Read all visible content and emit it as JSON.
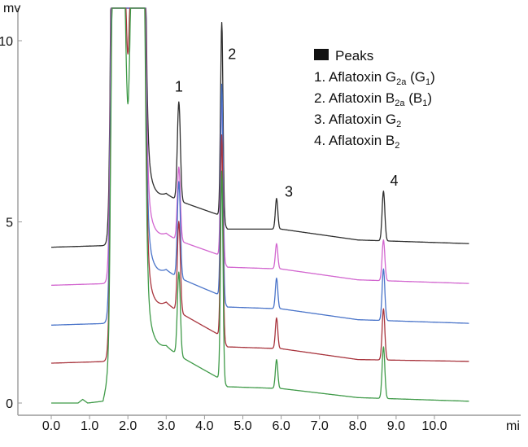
{
  "chart_data": {
    "type": "line",
    "y_unit": "mv",
    "x_unit": "mi",
    "xlim": [
      0,
      10.9
    ],
    "ylim": [
      -0.3,
      10.3
    ],
    "x_ticks": [
      "0.0",
      "1.0",
      "2.0",
      "3.0",
      "4.0",
      "5.0",
      "6.0",
      "7.0",
      "8.0",
      "9.0",
      "10.0"
    ],
    "y_ticks": [
      "0",
      "5",
      "10"
    ],
    "grid": false,
    "legend": {
      "placement": "top-right",
      "title": "Peaks",
      "items": [
        {
          "num": "1.",
          "base": "Aflatoxin G",
          "sub": "2a",
          "rest": " (G",
          "sub2": "1",
          "end": ")"
        },
        {
          "num": "2.",
          "base": "Aflatoxin B",
          "sub": "2a",
          "rest": " (B",
          "sub2": "1",
          "end": ")"
        },
        {
          "num": "3.",
          "base": "Aflatoxin G",
          "sub": "2",
          "rest": "",
          "sub2": "",
          "end": ""
        },
        {
          "num": "4.",
          "base": "Aflatoxin B",
          "sub": "2",
          "rest": "",
          "sub2": "",
          "end": ""
        }
      ]
    },
    "peak_labels": [
      {
        "label": "1",
        "x": 3.33,
        "y": 8.6
      },
      {
        "label": "2",
        "x": 4.72,
        "y": 9.5
      },
      {
        "label": "3",
        "x": 6.2,
        "y": 5.7
      },
      {
        "label": "4",
        "x": 8.95,
        "y": 6.0
      }
    ],
    "series": [
      {
        "color": "#2e2e2e",
        "baseline": [
          [
            0.0,
            4.3
          ],
          [
            1.55,
            4.35
          ],
          [
            3.0,
            5.7
          ],
          [
            4.35,
            5.2
          ],
          [
            4.6,
            4.8
          ],
          [
            6.0,
            4.8
          ],
          [
            8.0,
            4.5
          ],
          [
            10.9,
            4.4
          ]
        ],
        "peaks": [
          {
            "x": 3.33,
            "y": 8.3
          },
          {
            "x": 4.45,
            "y": 10.5
          },
          {
            "x": 5.88,
            "y": 5.65
          },
          {
            "x": 8.67,
            "y": 5.85
          }
        ]
      },
      {
        "color": "#d266cf",
        "baseline": [
          [
            0.0,
            3.25
          ],
          [
            1.55,
            3.3
          ],
          [
            3.0,
            4.6
          ],
          [
            4.35,
            4.1
          ],
          [
            4.6,
            3.75
          ],
          [
            6.0,
            3.7
          ],
          [
            8.0,
            3.4
          ],
          [
            10.9,
            3.3
          ]
        ],
        "peaks": [
          {
            "x": 3.33,
            "y": 6.5
          },
          {
            "x": 4.45,
            "y": 8.5
          },
          {
            "x": 5.88,
            "y": 4.4
          },
          {
            "x": 8.67,
            "y": 4.5
          }
        ]
      },
      {
        "color": "#4a74c9",
        "baseline": [
          [
            0.0,
            2.15
          ],
          [
            1.55,
            2.2
          ],
          [
            3.0,
            3.6
          ],
          [
            4.35,
            3.0
          ],
          [
            4.6,
            2.65
          ],
          [
            6.0,
            2.6
          ],
          [
            8.0,
            2.3
          ],
          [
            10.9,
            2.2
          ]
        ],
        "peaks": [
          {
            "x": 3.33,
            "y": 6.1
          },
          {
            "x": 4.45,
            "y": 8.8
          },
          {
            "x": 5.88,
            "y": 3.45
          },
          {
            "x": 8.67,
            "y": 3.7
          }
        ]
      },
      {
        "color": "#a8343d",
        "baseline": [
          [
            0.0,
            1.1
          ],
          [
            1.55,
            1.15
          ],
          [
            3.0,
            2.7
          ],
          [
            4.35,
            1.9
          ],
          [
            4.6,
            1.55
          ],
          [
            6.0,
            1.5
          ],
          [
            8.0,
            1.2
          ],
          [
            10.9,
            1.15
          ]
        ],
        "peaks": [
          {
            "x": 3.33,
            "y": 5.0
          },
          {
            "x": 4.45,
            "y": 7.4
          },
          {
            "x": 5.88,
            "y": 2.35
          },
          {
            "x": 8.67,
            "y": 2.6
          }
        ]
      },
      {
        "color": "#3f9a48",
        "baseline": [
          [
            0.0,
            0.0
          ],
          [
            0.7,
            0.0
          ],
          [
            0.82,
            0.1
          ],
          [
            0.95,
            0.0
          ],
          [
            1.35,
            0.05
          ],
          [
            1.45,
            0.5
          ],
          [
            1.6,
            0.6
          ],
          [
            3.0,
            1.5
          ],
          [
            4.35,
            0.7
          ],
          [
            4.6,
            0.45
          ],
          [
            6.0,
            0.4
          ],
          [
            8.0,
            0.15
          ],
          [
            10.9,
            0.05
          ]
        ],
        "peaks": [
          {
            "x": 3.33,
            "y": 3.6
          },
          {
            "x": 4.45,
            "y": 6.4
          },
          {
            "x": 5.88,
            "y": 1.2
          },
          {
            "x": 8.67,
            "y": 1.55
          }
        ]
      }
    ]
  }
}
